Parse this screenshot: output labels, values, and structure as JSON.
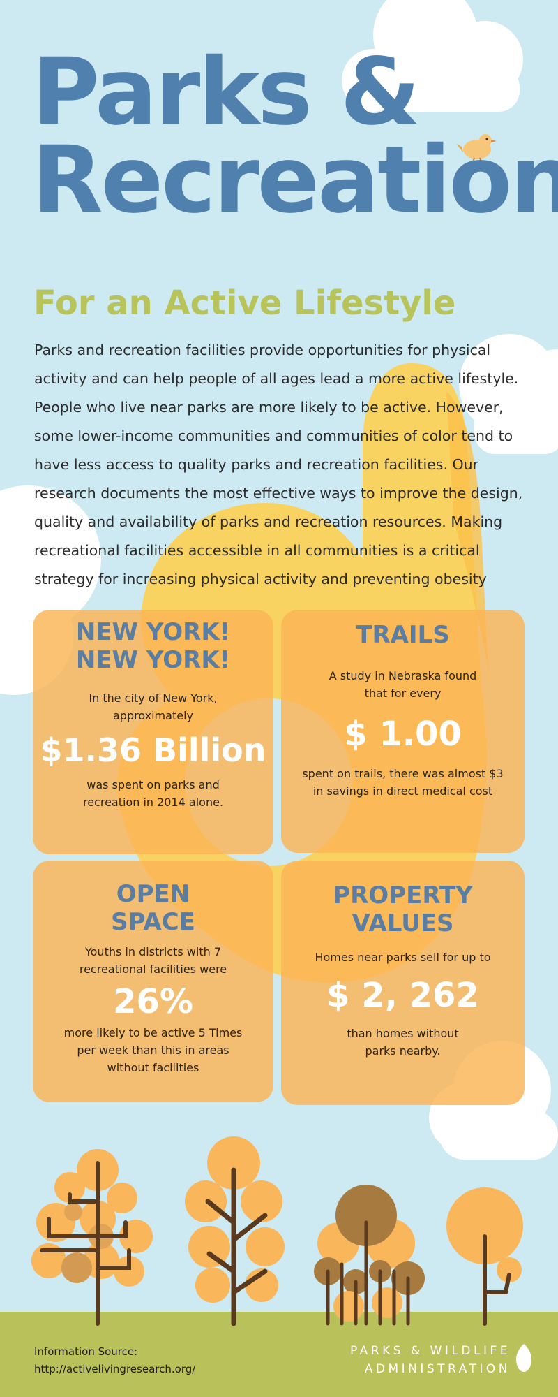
{
  "header": {
    "title_line1": "Parks &",
    "title_line2": "Recreation"
  },
  "intro": {
    "heading": "For an Active Lifestyle",
    "body": "Parks and recreation facilities provide opportunities for physical activity and can help people of all ages lead a more active lifestyle. People who live near parks are more likely to be active. However, some lower-income communities and communities of color tend to have less access to quality parks and recreation facilities. Our research documents the most effective ways to improve the design, quality and availability of parks and recreation resources. Making recreational facilities accessible in all communities is a critical strategy for increasing physical activity and preventing obesity"
  },
  "cards": [
    {
      "title": "NEW YORK!\nNEW YORK!",
      "text_before": "In the city of New York, approximately",
      "stat": "$1.36 Billion",
      "text_after": "was spent on parks and recreation in 2014 alone."
    },
    {
      "title": "TRAILS",
      "text_before": "A study in Nebraska found that for every",
      "stat": "$ 1.00",
      "text_after": "spent on trails, there was almost $3 in savings in direct medical cost"
    },
    {
      "title": "OPEN\nSPACE",
      "text_before": "Youths in districts with 7 recreational facilities were",
      "stat": "26%",
      "text_after": "more likely to be active 5 Times per week than this in areas without facilities"
    },
    {
      "title": "PROPERTY\nVALUES",
      "text_before": "Homes near parks sell for up to",
      "stat": "$ 2, 262",
      "text_after": "than homes without parks nearby."
    }
  ],
  "footer": {
    "source_label": "Information Source:",
    "source_url": "http://activelivingresearch.org/",
    "brand_line1": "PARKS & WILDLIFE",
    "brand_line2": "ADMINISTRATION"
  },
  "colors": {
    "background": "#cde9f1",
    "title": "#5080ae",
    "subtitle": "#b8c45a",
    "card": "#fbb456",
    "hand": "#fbd25a",
    "ground": "#b9c15b",
    "tree_orange": "#f9b65b",
    "tree_trunk": "#5a3a1e"
  }
}
